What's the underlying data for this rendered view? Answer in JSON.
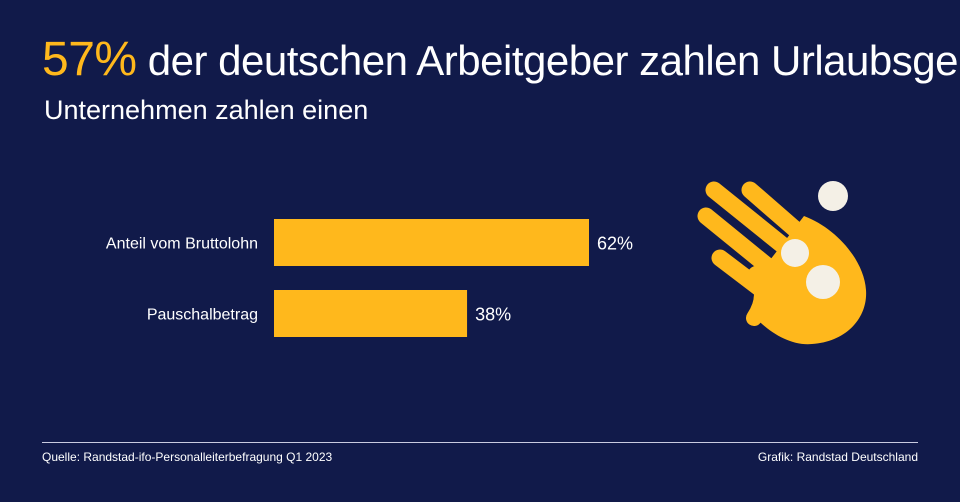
{
  "header": {
    "highlight": "57%",
    "title_rest": " der deutschen Arbeitgeber zahlen Urlaubsgeld",
    "subtitle": "Unternehmen zahlen einen"
  },
  "chart_data": {
    "type": "bar",
    "orientation": "horizontal",
    "categories": [
      "Anteil vom Bruttolohn",
      "Pauschalbetrag"
    ],
    "values": [
      62,
      38
    ],
    "value_labels": [
      "62%",
      "38%"
    ],
    "unit": "%",
    "xlim": [
      0,
      100
    ],
    "grid": false,
    "legend": "none",
    "bar_color": "#ffb81c"
  },
  "colors": {
    "background": "#111a4a",
    "accent": "#ffb81c",
    "text": "#ffffff"
  },
  "illustration": {
    "icon": "hand-with-coins-icon"
  },
  "footer": {
    "source": "Quelle: Randstad-ifo-Personalleiterbefragung Q1 2023",
    "credit": "Grafik: Randstad Deutschland"
  }
}
